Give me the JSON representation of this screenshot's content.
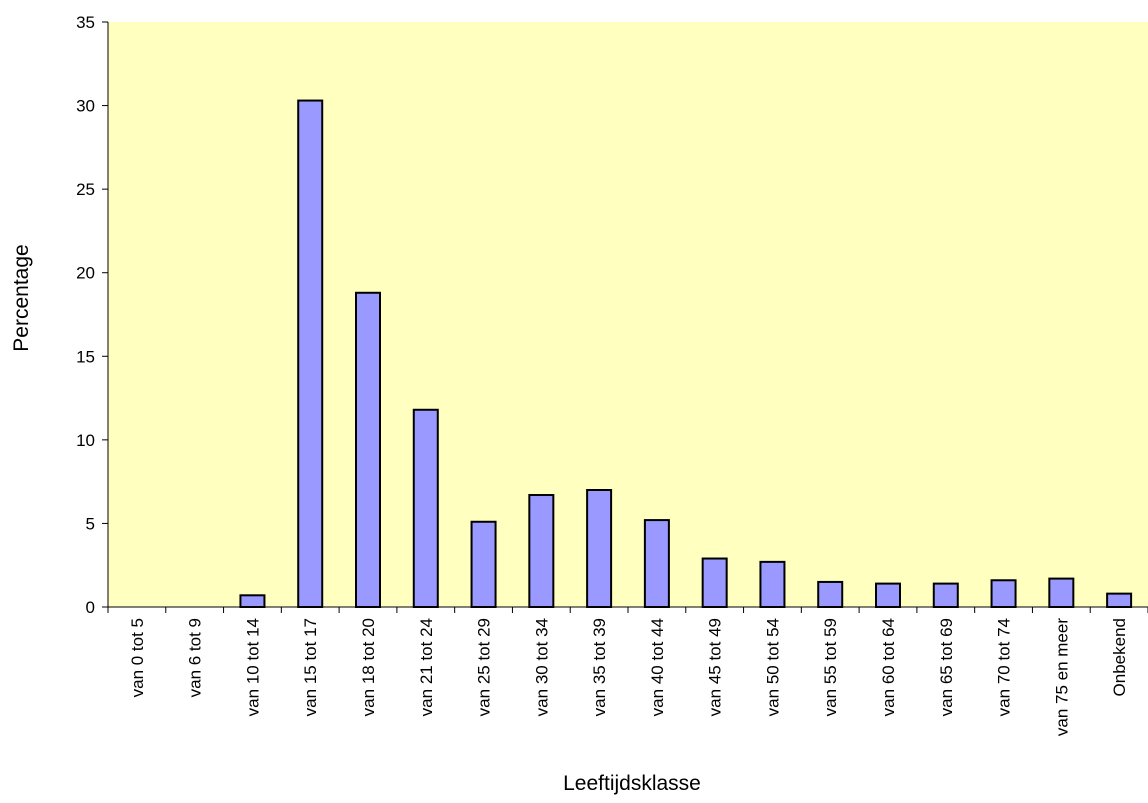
{
  "chart_data": {
    "type": "bar",
    "title": "",
    "xlabel": "Leeftijdsklasse",
    "ylabel": "Percentage",
    "categories": [
      "van 0 tot 5",
      "van 6 tot 9",
      "van 10 tot 14",
      "van 15 tot 17",
      "van 18 tot 20",
      "van 21 tot 24",
      "van 25 tot 29",
      "van 30 tot 34",
      "van 35 tot 39",
      "van 40 tot 44",
      "van 45 tot 49",
      "van 50 tot 54",
      "van 55 tot 59",
      "van 60 tot 64",
      "van 65 tot 69",
      "van 70 tot 74",
      "van 75 en meer",
      "Onbekend"
    ],
    "values": [
      0,
      0,
      0.7,
      30.3,
      18.8,
      11.8,
      5.1,
      6.7,
      7.0,
      5.2,
      2.9,
      2.7,
      1.5,
      1.4,
      1.4,
      1.6,
      1.7,
      0.8
    ],
    "ylim": [
      0,
      35
    ],
    "yticks": [
      "0",
      "5",
      "10",
      "15",
      "20",
      "25",
      "30",
      "35"
    ],
    "grid": false,
    "legend": "none",
    "colors": {
      "plot_background": "#FFFFC0",
      "bar_fill": "#9999FF",
      "bar_stroke": "#000000",
      "axis": "#000000"
    }
  }
}
